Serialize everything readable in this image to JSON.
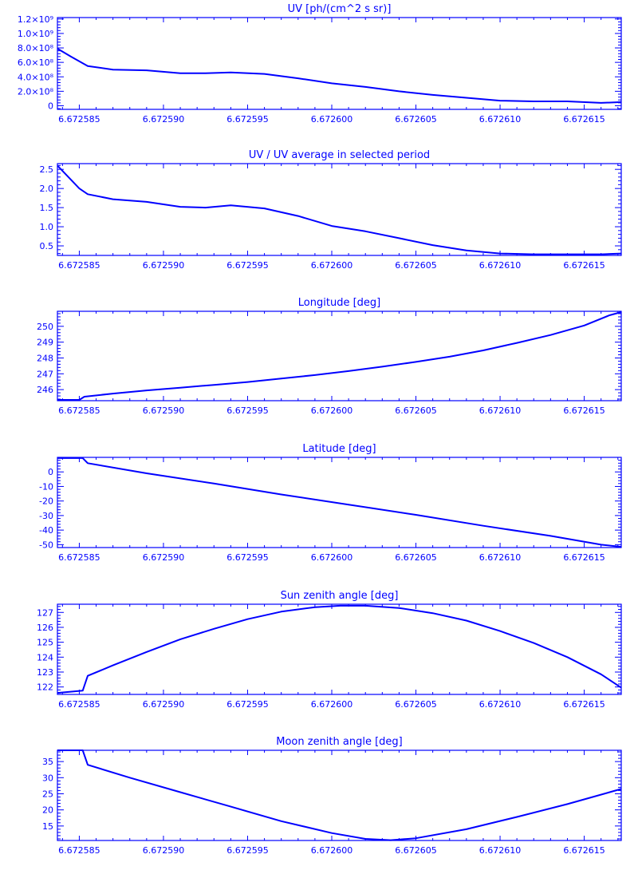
{
  "figure": {
    "color": "#0000ff",
    "background": "#ffffff"
  },
  "chart_data": [
    {
      "type": "line",
      "title": "UV [ph/(cm^2 s sr)]",
      "xlim": [
        6.6725837,
        6.6726172
      ],
      "x_ticks": [
        "6.672585",
        "6.672590",
        "6.672595",
        "6.672600",
        "6.672605",
        "6.672610",
        "6.672615"
      ],
      "ylim": [
        -50000000.0,
        1220000000.0
      ],
      "y_ticks": [
        {
          "value": 0,
          "label": "0"
        },
        {
          "value": 200000000.0,
          "label": "2.0×10⁸"
        },
        {
          "value": 400000000.0,
          "label": "4.0×10⁸"
        },
        {
          "value": 600000000.0,
          "label": "6.0×10⁸"
        },
        {
          "value": 800000000.0,
          "label": "8.0×10⁸"
        },
        {
          "value": 1000000000.0,
          "label": "1.0×10⁹"
        },
        {
          "value": 1200000000.0,
          "label": "1.2×10⁹"
        }
      ],
      "x": [
        6.6725837,
        6.6725845,
        6.6725855,
        6.672587,
        6.672589,
        6.672591,
        6.6725925,
        6.672594,
        6.672596,
        6.672598,
        6.6726,
        6.672602,
        6.672604,
        6.672606,
        6.672608,
        6.67261,
        6.672612,
        6.672614,
        6.672616,
        6.6726172
      ],
      "y": [
        790000000.0,
        680000000.0,
        550000000.0,
        500000000.0,
        490000000.0,
        450000000.0,
        450000000.0,
        460000000.0,
        440000000.0,
        380000000.0,
        310000000.0,
        260000000.0,
        200000000.0,
        150000000.0,
        110000000.0,
        70000000.0,
        60000000.0,
        60000000.0,
        40000000.0,
        50000000.0
      ]
    },
    {
      "type": "line",
      "title": "UV / UV average in selected period",
      "xlim": [
        6.6725837,
        6.6726172
      ],
      "x_ticks": [
        "6.672585",
        "6.672590",
        "6.672595",
        "6.672600",
        "6.672605",
        "6.672610",
        "6.672615"
      ],
      "ylim": [
        0.25,
        2.65
      ],
      "y_ticks": [
        {
          "value": 0.5,
          "label": "0.5"
        },
        {
          "value": 1.0,
          "label": "1.0"
        },
        {
          "value": 1.5,
          "label": "1.5"
        },
        {
          "value": 2.0,
          "label": "2.0"
        },
        {
          "value": 2.5,
          "label": "2.5"
        }
      ],
      "x": [
        6.6725837,
        6.672585,
        6.6725855,
        6.672587,
        6.672589,
        6.672591,
        6.6725925,
        6.672594,
        6.672596,
        6.672598,
        6.6726,
        6.672602,
        6.672604,
        6.672606,
        6.672608,
        6.67261,
        6.672612,
        6.672614,
        6.672616,
        6.6726172
      ],
      "y": [
        2.6,
        2.0,
        1.85,
        1.72,
        1.65,
        1.52,
        1.5,
        1.56,
        1.48,
        1.28,
        1.02,
        0.88,
        0.7,
        0.52,
        0.38,
        0.3,
        0.28,
        0.28,
        0.28,
        0.3
      ]
    },
    {
      "type": "line",
      "title": "Longitude [deg]",
      "xlim": [
        6.6725837,
        6.6726172
      ],
      "x_ticks": [
        "6.672585",
        "6.672590",
        "6.672595",
        "6.672600",
        "6.672605",
        "6.672610",
        "6.672615"
      ],
      "ylim": [
        245.3,
        250.95
      ],
      "y_ticks": [
        {
          "value": 246,
          "label": "246"
        },
        {
          "value": 247,
          "label": "247"
        },
        {
          "value": 248,
          "label": "248"
        },
        {
          "value": 249,
          "label": "249"
        },
        {
          "value": 250,
          "label": "250"
        }
      ],
      "x": [
        6.6725837,
        6.672585,
        6.6725853,
        6.672587,
        6.672589,
        6.672591,
        6.672593,
        6.672595,
        6.672597,
        6.672599,
        6.672601,
        6.672603,
        6.672605,
        6.672607,
        6.672609,
        6.672611,
        6.672613,
        6.672615,
        6.6726165,
        6.6726172
      ],
      "y": [
        245.35,
        245.35,
        245.55,
        245.75,
        245.95,
        246.12,
        246.3,
        246.48,
        246.7,
        246.92,
        247.17,
        247.45,
        247.75,
        248.08,
        248.48,
        248.95,
        249.45,
        250.05,
        250.7,
        250.9
      ]
    },
    {
      "type": "line",
      "title": "Latitude [deg]",
      "xlim": [
        6.6725837,
        6.6726172
      ],
      "x_ticks": [
        "6.672585",
        "6.672590",
        "6.672595",
        "6.672600",
        "6.672605",
        "6.672610",
        "6.672615"
      ],
      "ylim": [
        -52,
        10
      ],
      "y_ticks": [
        {
          "value": -50,
          "label": "-50"
        },
        {
          "value": -40,
          "label": "-40"
        },
        {
          "value": -30,
          "label": "-30"
        },
        {
          "value": -20,
          "label": "-20"
        },
        {
          "value": -10,
          "label": "-10"
        },
        {
          "value": 0,
          "label": "0"
        }
      ],
      "x": [
        6.6725837,
        6.6725852,
        6.6725855,
        6.672589,
        6.672593,
        6.672597,
        6.672601,
        6.672605,
        6.672609,
        6.672613,
        6.672616,
        6.6726172
      ],
      "y": [
        9.5,
        9.5,
        6,
        -1,
        -8,
        -15.5,
        -22.5,
        -29.5,
        -37,
        -44,
        -50,
        -51.5
      ]
    },
    {
      "type": "line",
      "title": "Sun zenith angle [deg]",
      "xlim": [
        6.6725837,
        6.6726172
      ],
      "x_ticks": [
        "6.672585",
        "6.672590",
        "6.672595",
        "6.672600",
        "6.672605",
        "6.672610",
        "6.672615"
      ],
      "ylim": [
        121.5,
        127.55
      ],
      "y_ticks": [
        {
          "value": 122,
          "label": "122"
        },
        {
          "value": 123,
          "label": "123"
        },
        {
          "value": 124,
          "label": "124"
        },
        {
          "value": 125,
          "label": "125"
        },
        {
          "value": 126,
          "label": "126"
        },
        {
          "value": 127,
          "label": "127"
        }
      ],
      "x": [
        6.6725837,
        6.6725852,
        6.6725855,
        6.672587,
        6.672589,
        6.672591,
        6.672593,
        6.672595,
        6.672597,
        6.672599,
        6.6726005,
        6.672602,
        6.672604,
        6.672606,
        6.672608,
        6.67261,
        6.672612,
        6.672614,
        6.672616,
        6.6726172
      ],
      "y": [
        121.6,
        121.75,
        122.75,
        123.45,
        124.35,
        125.2,
        125.9,
        126.55,
        127.05,
        127.35,
        127.45,
        127.45,
        127.3,
        126.95,
        126.45,
        125.75,
        124.95,
        124.0,
        122.85,
        121.95
      ]
    },
    {
      "type": "line",
      "title": "Moon zenith angle [deg]",
      "xlim": [
        6.6725837,
        6.6726172
      ],
      "x_ticks": [
        "6.672585",
        "6.672590",
        "6.672595",
        "6.672600",
        "6.672605",
        "6.672610",
        "6.672615"
      ],
      "ylim": [
        10.5,
        38.5
      ],
      "y_ticks": [
        {
          "value": 15,
          "label": "15"
        },
        {
          "value": 20,
          "label": "20"
        },
        {
          "value": 25,
          "label": "25"
        },
        {
          "value": 30,
          "label": "30"
        },
        {
          "value": 35,
          "label": "35"
        }
      ],
      "x": [
        6.6725837,
        6.6725852,
        6.6725855,
        6.672588,
        6.672591,
        6.672594,
        6.672597,
        6.6726,
        6.672602,
        6.6726035,
        6.672605,
        6.672608,
        6.672611,
        6.672614,
        6.6726172
      ],
      "y": [
        38.5,
        38.5,
        34,
        30,
        25.5,
        21,
        16.5,
        12.8,
        11.0,
        10.6,
        11.2,
        14.0,
        17.8,
        21.8,
        26.5
      ]
    }
  ]
}
